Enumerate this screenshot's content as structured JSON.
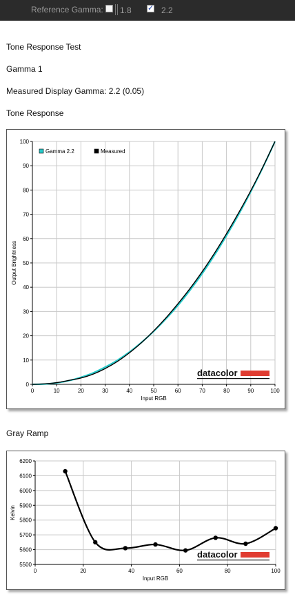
{
  "toolbar": {
    "reference_gamma_label": "Reference Gamma:",
    "options": [
      {
        "label": "1.8",
        "checked": false
      },
      {
        "label": "2.2",
        "checked": true
      }
    ]
  },
  "headings": {
    "test_title": "Tone Response Test",
    "gamma_name": "Gamma 1",
    "measured": "Measured Display Gamma: 2.2 (0.05)",
    "tone_response": "Tone Response",
    "gray_ramp": "Gray Ramp"
  },
  "colors": {
    "gamma_ref": "#27c9c9",
    "measured": "#000000",
    "grid": "#c8c8c8",
    "brand_bar": "#e03c31"
  },
  "chart_data": [
    {
      "type": "line",
      "title": "Tone Response",
      "xlabel": "Input RGB",
      "ylabel": "Output Brightness",
      "xlim": [
        0,
        100
      ],
      "ylim": [
        0,
        100
      ],
      "xticks": [
        0,
        10,
        20,
        30,
        40,
        50,
        60,
        70,
        80,
        90,
        100
      ],
      "yticks": [
        0,
        10,
        20,
        30,
        40,
        50,
        60,
        70,
        80,
        90,
        100
      ],
      "grid": true,
      "legend": "top-left",
      "brand": "datacolor",
      "series": [
        {
          "name": "Gamma 2.2",
          "x": [
            0,
            5,
            10,
            15,
            20,
            25,
            30,
            35,
            40,
            45,
            50,
            55,
            60,
            65,
            70,
            75,
            80,
            85,
            90,
            95,
            100
          ],
          "y": [
            0,
            0.1,
            0.6,
            1.5,
            2.9,
            4.7,
            7.1,
            9.9,
            13.3,
            17.3,
            21.8,
            26.9,
            32.5,
            38.8,
            45.6,
            53.1,
            61.2,
            69.9,
            79.3,
            89.3,
            100
          ]
        },
        {
          "name": "Measured",
          "x": [
            0,
            5,
            10,
            15,
            20,
            25,
            30,
            35,
            40,
            45,
            50,
            55,
            60,
            65,
            70,
            75,
            80,
            85,
            90,
            95,
            100
          ],
          "y": [
            0,
            0.2,
            0.7,
            1.6,
            2.6,
            4.2,
            6.5,
            9.4,
            13.0,
            17.2,
            22.0,
            27.3,
            33.2,
            39.5,
            46.4,
            53.9,
            62.0,
            70.6,
            79.7,
            89.5,
            100
          ]
        }
      ]
    },
    {
      "type": "line",
      "title": "Gray Ramp",
      "xlabel": "Input RGB",
      "ylabel": "Kelvin",
      "xlim": [
        0,
        100
      ],
      "ylim": [
        5500,
        6200
      ],
      "xticks": [
        0,
        20,
        40,
        60,
        80,
        100
      ],
      "yticks": [
        5500,
        5600,
        5700,
        5800,
        5900,
        6000,
        6100,
        6200
      ],
      "grid": true,
      "brand": "datacolor",
      "series": [
        {
          "x": [
            12.5,
            25,
            37.5,
            50,
            62.5,
            75,
            87.5,
            100
          ],
          "y": [
            6130,
            5650,
            5610,
            5635,
            5595,
            5680,
            5640,
            5745
          ]
        }
      ]
    }
  ]
}
